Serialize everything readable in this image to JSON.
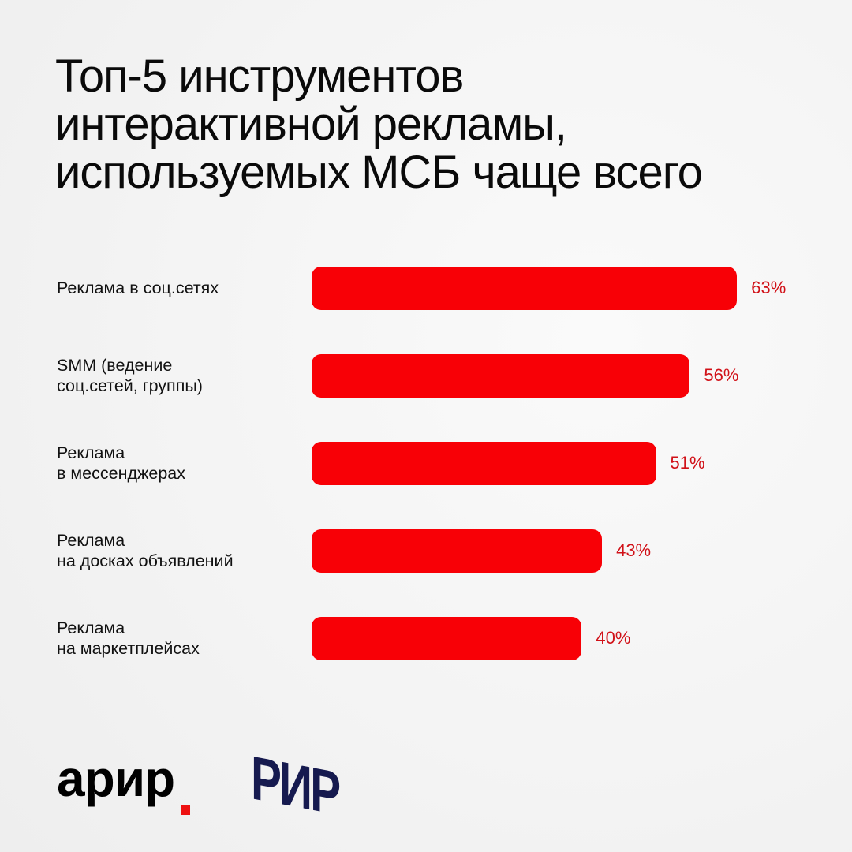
{
  "chart_data": {
    "type": "bar",
    "orientation": "horizontal",
    "title": [
      "Топ-5 инструментов",
      "интерактивной рекламы,",
      "используемых МСБ чаще всего"
    ],
    "categories": [
      [
        "Реклама в соц.сетях"
      ],
      [
        "SMM (ведение",
        "соц.сетей, группы)"
      ],
      [
        "Реклама",
        "в мессенджерах"
      ],
      [
        "Реклама",
        "на досках объявлений"
      ],
      [
        "Реклама",
        "на маркетплейсах"
      ]
    ],
    "values": [
      63,
      56,
      51,
      43,
      40
    ],
    "data_labels": [
      "63%",
      "56%",
      "51%",
      "43%",
      "40%"
    ],
    "unit": "%",
    "grid": false,
    "colors": {
      "bar": "#f80006",
      "value_label": "#d11118"
    }
  },
  "logos": {
    "left": "арир",
    "right": "РИР"
  }
}
